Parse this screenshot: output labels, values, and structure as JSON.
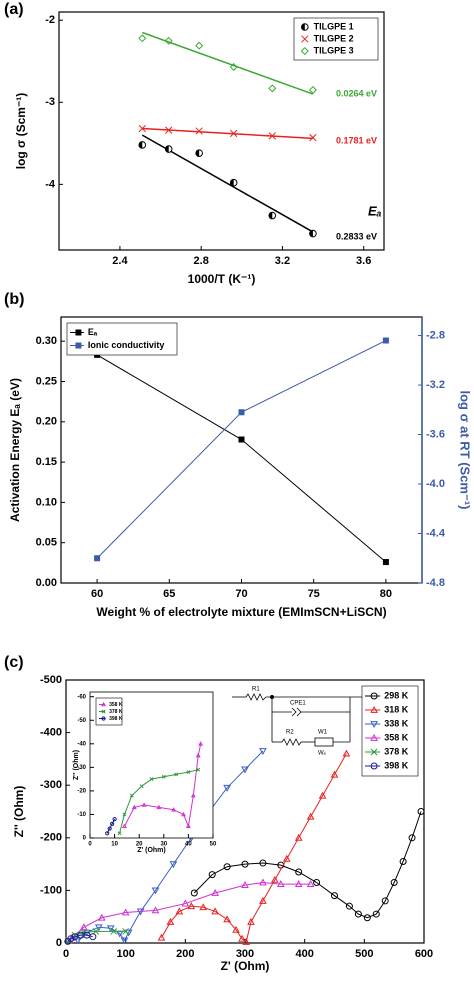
{
  "chart_data": [
    {
      "type": "scatter",
      "panel_label": "(a)",
      "xlabel": "1000/T (K⁻¹)",
      "ylabel": "log σ (Scm⁻¹)",
      "xlim": [
        2.1,
        3.7
      ],
      "ylim": [
        -4.8,
        -1.9
      ],
      "xticks": [
        2.4,
        2.8,
        3.2,
        3.6
      ],
      "yticks": [
        -4,
        -3,
        -2
      ],
      "legend": "upper right",
      "grid": false,
      "x": [
        2.51,
        2.64,
        2.79,
        2.96,
        3.15,
        3.35
      ],
      "series": [
        {
          "name": "TILGPE 1",
          "color": "#000000",
          "marker": "half",
          "values": [
            -3.52,
            -3.57,
            -3.62,
            -3.98,
            -4.38,
            -4.6
          ],
          "fit_x": [
            2.51,
            3.35
          ],
          "fit_values": [
            -3.4,
            -4.58
          ]
        },
        {
          "name": "TILGPE 2",
          "color": "#e8211f",
          "marker": "x",
          "values": [
            -3.32,
            -3.34,
            -3.35,
            -3.38,
            -3.41,
            -3.43
          ],
          "fit_x": [
            2.51,
            3.35
          ],
          "fit_values": [
            -3.32,
            -3.44
          ]
        },
        {
          "name": "TILGPE 3",
          "color": "#3aaa35",
          "marker": "diamond",
          "values": [
            -2.22,
            -2.25,
            -2.31,
            -2.57,
            -2.83,
            -2.85
          ],
          "fit_x": [
            2.51,
            3.35
          ],
          "fit_values": [
            -2.15,
            -2.9
          ]
        }
      ],
      "annotations": [
        {
          "text": "0.0264 eV",
          "color": "#3aaa35"
        },
        {
          "text": "0.1781 eV",
          "color": "#e8211f"
        },
        {
          "text": "Eₐ",
          "color": "#000000"
        },
        {
          "text": "0.2833 eV",
          "color": "#000000"
        }
      ]
    },
    {
      "type": "line",
      "panel_label": "(b)",
      "xlabel": "Weight % of electrolyte mixture (EMImSCN+LiSCN)",
      "ylabel": "Activation Energy Eₐ (eV)",
      "y2label": "log σ at RT (Scm⁻¹)",
      "y2color": "#3c5ba8",
      "xlim": [
        57.5,
        82.5
      ],
      "xticks": [
        60,
        65,
        70,
        75,
        80
      ],
      "ylim": [
        0,
        0.33
      ],
      "yticks": [
        {
          "value": 0,
          "label": "0.00"
        },
        0.05,
        {
          "value": 0.1,
          "label": "0.10"
        },
        0.15,
        {
          "value": 0.2,
          "label": "0.20"
        },
        0.25,
        {
          "value": 0.3,
          "label": "0.30"
        }
      ],
      "y2lim": [
        -4.8,
        -2.65
      ],
      "y2ticks": [
        -4.8,
        -4.4,
        {
          "value": -4,
          "label": "-4.0"
        },
        -3.6,
        -3.2,
        -2.8
      ],
      "legend": "upper left",
      "grid": false,
      "x": [
        60,
        70,
        80
      ],
      "series": [
        {
          "name": "Eₐ",
          "color": "#000000",
          "marker": "square",
          "line": true,
          "values": [
            0.283,
            0.178,
            0.026
          ]
        },
        {
          "name": "Ionic conductivity",
          "color": "#3c5ba8",
          "marker": "square",
          "line": true,
          "axis": "y2",
          "values": [
            -4.6,
            -3.42,
            -2.84
          ]
        }
      ]
    },
    {
      "type": "line",
      "panel_label": "(c)",
      "xlabel": "Z' (Ohm)",
      "ylabel": "Z'' (Ohm)",
      "xlim": [
        0,
        600
      ],
      "xticks": [
        0,
        100,
        200,
        300,
        400,
        500,
        600
      ],
      "ylim": [
        0,
        -500
      ],
      "yticks": [
        -500,
        -400,
        -300,
        -200,
        -100,
        0
      ],
      "legend": "upper right",
      "grid": false,
      "series": [
        {
          "name": "298 K",
          "color": "#000000",
          "marker": "circle",
          "line": true,
          "x": [
            215,
            245,
            270,
            300,
            330,
            360,
            390,
            420,
            450,
            475,
            490,
            505,
            520,
            535,
            550,
            565,
            580,
            595
          ],
          "values": [
            -95,
            -130,
            -145,
            -150,
            -152,
            -148,
            -135,
            -115,
            -90,
            -70,
            -55,
            -48,
            -55,
            -80,
            -115,
            -155,
            -200,
            -250
          ]
        },
        {
          "name": "318 K",
          "color": "#e8211f",
          "marker": "tri-up",
          "line": true,
          "x": [
            160,
            175,
            190,
            210,
            230,
            250,
            270,
            285,
            295,
            302,
            310,
            330,
            350,
            370,
            390,
            410,
            430,
            450,
            470
          ],
          "values": [
            -10,
            -40,
            -60,
            -70,
            -68,
            -60,
            -45,
            -25,
            -8,
            -2,
            -40,
            -80,
            -120,
            -160,
            -200,
            -240,
            -280,
            -320,
            -360
          ]
        },
        {
          "name": "338 K",
          "color": "#3a5fc4",
          "marker": "tri-down",
          "line": true,
          "x": [
            20,
            35,
            55,
            75,
            90,
            98,
            105,
            125,
            150,
            180,
            210,
            240,
            270,
            300,
            330
          ],
          "values": [
            -5,
            -20,
            -30,
            -28,
            -18,
            -5,
            -20,
            -60,
            -100,
            -150,
            -200,
            -250,
            -295,
            -330,
            -365
          ]
        },
        {
          "name": "358 K",
          "color": "#d22fd2",
          "marker": "tri-up",
          "line": true,
          "x": [
            10,
            30,
            60,
            100,
            150,
            200,
            250,
            300,
            330,
            360,
            390,
            410
          ],
          "values": [
            -10,
            -30,
            -48,
            -58,
            -62,
            -75,
            -95,
            -110,
            -115,
            -112,
            -112,
            -112
          ]
        },
        {
          "name": "378 K",
          "color": "#2e9a3c",
          "marker": "x",
          "line": true,
          "x": [
            5,
            15,
            30,
            50,
            80,
            100
          ],
          "values": [
            -5,
            -15,
            -20,
            -22,
            -22,
            -22
          ]
        },
        {
          "name": "398 K",
          "color": "#1a1a8c",
          "marker": "circle",
          "line": true,
          "x": [
            3,
            8,
            15,
            25,
            35,
            45
          ],
          "values": [
            -3,
            -8,
            -12,
            -15,
            -15,
            -12
          ]
        }
      ]
    },
    {
      "type": "line",
      "xlabel": "Z' (Ohm)",
      "ylabel": "Z'' (Ohm)",
      "xlim": [
        0,
        50
      ],
      "xticks": [
        0,
        10,
        20,
        30,
        40,
        50
      ],
      "ylim": [
        0,
        -62
      ],
      "yticks": [
        -60,
        -50,
        -40,
        -30,
        -20,
        -10,
        0
      ],
      "legend": "upper left",
      "grid": false,
      "series": [
        {
          "name": "358 K",
          "color": "#d22fd2",
          "marker": "tri-up",
          "line": true,
          "x": [
            14,
            18,
            22,
            28,
            34,
            38,
            40,
            42,
            44,
            45
          ],
          "values": [
            -5,
            -13,
            -14,
            -13,
            -12,
            -10,
            -5,
            -18,
            -35,
            -40
          ]
        },
        {
          "name": "378 K",
          "color": "#2e9a3c",
          "marker": "x",
          "line": true,
          "x": [
            12,
            14,
            17,
            21,
            25,
            30,
            35,
            40,
            44
          ],
          "values": [
            -2,
            -10,
            -18,
            -22,
            -25,
            -26,
            -27,
            -28,
            -29
          ]
        },
        {
          "name": "398 K",
          "color": "#1a1a8c",
          "marker": "circle",
          "line": true,
          "x": [
            7,
            8,
            9,
            10
          ],
          "values": [
            -2,
            -4,
            -6,
            -8
          ]
        }
      ]
    }
  ],
  "circuit": {
    "R1": "R1",
    "CPE1": "CPE1",
    "R2": "R2",
    "W1": "W1",
    "WE": "Wₑ"
  }
}
